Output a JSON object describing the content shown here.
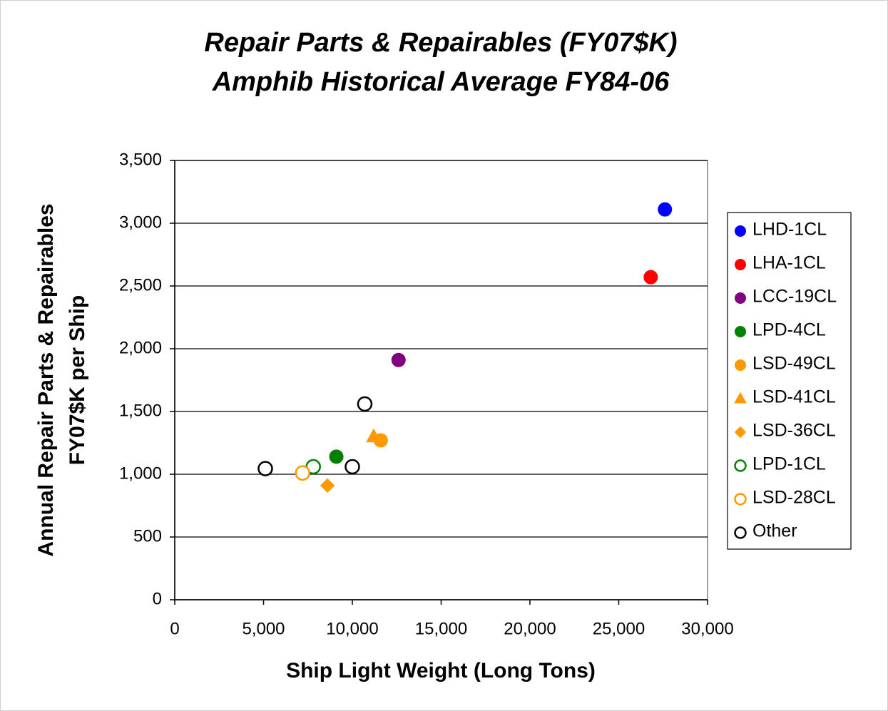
{
  "chart_data": {
    "type": "scatter",
    "title": "Repair Parts & Repairables (FY07$K)",
    "subtitle": "Amphib Historical Average FY84-06",
    "xlabel": "Ship Light Weight (Long Tons)",
    "ylabel": [
      "Annual Repair Parts & Repairables",
      "FY07$K per Ship"
    ],
    "xlim": [
      0,
      30000
    ],
    "xticks": [
      0,
      {
        "value": 5000,
        "label": "5,000"
      },
      {
        "value": 10000,
        "label": "10,000"
      },
      {
        "value": 15000,
        "label": "15,000"
      },
      {
        "value": 20000,
        "label": "20,000"
      },
      {
        "value": 25000,
        "label": "25,000"
      },
      {
        "value": 30000,
        "label": "30,000"
      }
    ],
    "ylim": [
      0,
      3500
    ],
    "yticks": [
      0,
      500,
      {
        "value": 1000,
        "label": "1,000"
      },
      {
        "value": 1500,
        "label": "1,500"
      },
      {
        "value": 2000,
        "label": "2,000"
      },
      {
        "value": 2500,
        "label": "2,500"
      },
      {
        "value": 3000,
        "label": "3,000"
      },
      {
        "value": 3500,
        "label": "3,500"
      }
    ],
    "grid": true,
    "legend": "right",
    "series": [
      {
        "name": "LHD-1CL",
        "color": "#0000ff",
        "marker": "circle",
        "filled": true,
        "x": [
          27600
        ],
        "values": [
          3110
        ]
      },
      {
        "name": "LHA-1CL",
        "color": "#ff0000",
        "marker": "circle",
        "filled": true,
        "x": [
          26800
        ],
        "values": [
          2570
        ]
      },
      {
        "name": "LCC-19CL",
        "color": "#800080",
        "marker": "circle",
        "filled": true,
        "x": [
          12600
        ],
        "values": [
          1910
        ]
      },
      {
        "name": "LPD-4CL",
        "color": "#008000",
        "marker": "circle",
        "filled": true,
        "x": [
          9100
        ],
        "values": [
          1140
        ]
      },
      {
        "name": "LSD-49CL",
        "color": "#ff9900",
        "marker": "circle",
        "filled": true,
        "x": [
          11600
        ],
        "values": [
          1270
        ]
      },
      {
        "name": "LSD-41CL",
        "color": "#ff9900",
        "marker": "triangle",
        "filled": true,
        "x": [
          11200
        ],
        "values": [
          1300
        ]
      },
      {
        "name": "LSD-36CL",
        "color": "#ff9900",
        "marker": "diamond",
        "filled": true,
        "x": [
          8600
        ],
        "values": [
          910
        ]
      },
      {
        "name": "LPD-1CL",
        "color": "#008000",
        "marker": "circle",
        "filled": false,
        "x": [
          7800
        ],
        "values": [
          1060
        ]
      },
      {
        "name": "LSD-28CL",
        "color": "#ff9900",
        "marker": "circle",
        "filled": false,
        "x": [
          7200
        ],
        "values": [
          1010
        ]
      },
      {
        "name": "Other",
        "color": "#000000",
        "marker": "circle",
        "filled": false,
        "x": [
          5100,
          10000,
          10700
        ],
        "values": [
          1045,
          1060,
          1560
        ]
      }
    ]
  }
}
